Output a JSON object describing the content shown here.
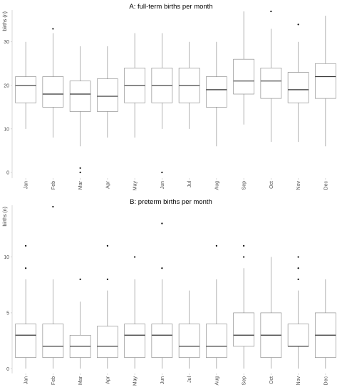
{
  "chart_data": [
    {
      "type": "boxplot",
      "title": "A: full-term births per month",
      "ylabel": "births (n)",
      "xlabel": "",
      "ylim": [
        -1,
        37
      ],
      "yticks": [
        0,
        10,
        20,
        30
      ],
      "grid": false,
      "categories": [
        "Jan",
        "Feb",
        "Mar",
        "Apr",
        "May",
        "Jun",
        "Jul",
        "Aug",
        "Sep",
        "Oct",
        "Nov",
        "Dec"
      ],
      "boxes": [
        {
          "min": 10,
          "q1": 16,
          "median": 20,
          "q3": 22,
          "max": 30,
          "outliers": []
        },
        {
          "min": 8,
          "q1": 15,
          "median": 18,
          "q3": 22,
          "max": 32,
          "outliers": [
            33
          ]
        },
        {
          "min": 6,
          "q1": 14,
          "median": 18,
          "q3": 21,
          "max": 29,
          "outliers": [
            1,
            0
          ]
        },
        {
          "min": 8,
          "q1": 14,
          "median": 17.5,
          "q3": 21.5,
          "max": 29,
          "outliers": []
        },
        {
          "min": 8,
          "q1": 16,
          "median": 20,
          "q3": 24,
          "max": 32,
          "outliers": []
        },
        {
          "min": 10,
          "q1": 16,
          "median": 20,
          "q3": 24,
          "max": 32,
          "outliers": [
            0
          ]
        },
        {
          "min": 10,
          "q1": 16,
          "median": 20,
          "q3": 24,
          "max": 30,
          "outliers": []
        },
        {
          "min": 6,
          "q1": 15,
          "median": 19,
          "q3": 22,
          "max": 30,
          "outliers": []
        },
        {
          "min": 11,
          "q1": 18,
          "median": 21,
          "q3": 26,
          "max": 37,
          "outliers": []
        },
        {
          "min": 7,
          "q1": 17,
          "median": 21,
          "q3": 24,
          "max": 33,
          "outliers": [
            37
          ]
        },
        {
          "min": 7,
          "q1": 16,
          "median": 19,
          "q3": 23,
          "max": 30,
          "outliers": [
            34
          ]
        },
        {
          "min": 6,
          "q1": 17,
          "median": 22,
          "q3": 25,
          "max": 36,
          "outliers": []
        }
      ]
    },
    {
      "type": "boxplot",
      "title": "B: preterm births per month",
      "ylabel": "births (n)",
      "xlabel": "",
      "ylim": [
        -0.3,
        14.5
      ],
      "yticks": [
        0,
        5,
        10
      ],
      "grid": false,
      "categories": [
        "Jan",
        "Feb",
        "Mar",
        "Apr",
        "May",
        "Jun",
        "Jul",
        "Aug",
        "Sep",
        "Oct",
        "Nov",
        "Dec"
      ],
      "boxes": [
        {
          "min": 0,
          "q1": 1,
          "median": 3,
          "q3": 4,
          "max": 8,
          "outliers": [
            9,
            11
          ]
        },
        {
          "min": 0,
          "q1": 1,
          "median": 2,
          "q3": 4,
          "max": 8,
          "outliers": [
            14.5
          ]
        },
        {
          "min": 0,
          "q1": 1,
          "median": 2,
          "q3": 3,
          "max": 6,
          "outliers": [
            8
          ]
        },
        {
          "min": 0,
          "q1": 1,
          "median": 2,
          "q3": 3.8,
          "max": 7,
          "outliers": [
            8,
            11
          ]
        },
        {
          "min": 0,
          "q1": 1,
          "median": 3,
          "q3": 4,
          "max": 8,
          "outliers": [
            10
          ]
        },
        {
          "min": 0,
          "q1": 1,
          "median": 3,
          "q3": 4,
          "max": 8,
          "outliers": [
            9,
            13
          ]
        },
        {
          "min": 0,
          "q1": 1,
          "median": 2,
          "q3": 4,
          "max": 7,
          "outliers": []
        },
        {
          "min": 0,
          "q1": 1,
          "median": 2,
          "q3": 4,
          "max": 8,
          "outliers": [
            11
          ]
        },
        {
          "min": 0,
          "q1": 2,
          "median": 3,
          "q3": 5,
          "max": 9,
          "outliers": [
            10,
            11
          ]
        },
        {
          "min": 0,
          "q1": 1,
          "median": 3,
          "q3": 5,
          "max": 10,
          "outliers": []
        },
        {
          "min": 0,
          "q1": 2,
          "median": 2,
          "q3": 4,
          "max": 7,
          "outliers": [
            8,
            9,
            10
          ]
        },
        {
          "min": 0,
          "q1": 1,
          "median": 3,
          "q3": 5,
          "max": 8,
          "outliers": []
        }
      ]
    }
  ],
  "style": {
    "box_stroke": "#7f7f7f",
    "median_stroke": "#333333",
    "outlier_fill": "#000000",
    "axis_stroke": "#bfbfbf"
  }
}
